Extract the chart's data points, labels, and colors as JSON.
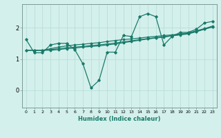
{
  "xlabel": "Humidex (Indice chaleur)",
  "bg_color": "#d4f0ec",
  "grid_color": "#b8ddd8",
  "line_color": "#1a7a6a",
  "spine_color": "#7a9a96",
  "xlim": [
    -0.5,
    23.5
  ],
  "ylim": [
    -0.55,
    2.75
  ],
  "yticks": [
    0,
    1,
    2
  ],
  "xticks": [
    0,
    1,
    2,
    3,
    4,
    5,
    6,
    7,
    8,
    9,
    10,
    11,
    12,
    13,
    14,
    15,
    16,
    17,
    18,
    19,
    20,
    21,
    22,
    23
  ],
  "line1_x": [
    0,
    1,
    2,
    3,
    4,
    5,
    6,
    7,
    8,
    9,
    10,
    11,
    12,
    13,
    14,
    15,
    16,
    17,
    18,
    19,
    20,
    21,
    22,
    23
  ],
  "line1_y": [
    1.62,
    1.2,
    1.2,
    1.45,
    1.5,
    1.5,
    1.3,
    0.85,
    0.08,
    0.32,
    1.22,
    1.22,
    1.75,
    1.72,
    2.35,
    2.45,
    2.35,
    1.45,
    1.72,
    1.85,
    1.85,
    1.95,
    2.15,
    2.2
  ],
  "line2_x": [
    0,
    1,
    2,
    3,
    4,
    5,
    6,
    7,
    8,
    9,
    10,
    11,
    12,
    13,
    14,
    15,
    16,
    17,
    18,
    19,
    20,
    21,
    22,
    23
  ],
  "line2_y": [
    1.28,
    1.28,
    1.28,
    1.33,
    1.38,
    1.42,
    1.45,
    1.47,
    1.5,
    1.52,
    1.56,
    1.59,
    1.62,
    1.64,
    1.67,
    1.7,
    1.72,
    1.75,
    1.77,
    1.8,
    1.83,
    1.9,
    1.97,
    2.05
  ],
  "line3_x": [
    0,
    1,
    2,
    3,
    4,
    5,
    6,
    7,
    8,
    9,
    10,
    11,
    12,
    13,
    14,
    15,
    16,
    17,
    18,
    19,
    20,
    21,
    22,
    23
  ],
  "line3_y": [
    1.28,
    1.28,
    1.28,
    1.3,
    1.33,
    1.36,
    1.38,
    1.4,
    1.43,
    1.45,
    1.48,
    1.51,
    1.55,
    1.58,
    1.62,
    1.65,
    1.68,
    1.71,
    1.75,
    1.78,
    1.82,
    1.88,
    1.96,
    2.03
  ],
  "line4_x": [
    0,
    1,
    2,
    3,
    4,
    5,
    6,
    7,
    8,
    9,
    10,
    11,
    12,
    13,
    14,
    15,
    16,
    17,
    18,
    19,
    20,
    21,
    22,
    23
  ],
  "line4_y": [
    1.28,
    1.28,
    1.28,
    1.28,
    1.3,
    1.33,
    1.35,
    1.38,
    1.4,
    1.42,
    1.45,
    1.48,
    1.52,
    1.56,
    1.6,
    1.64,
    1.67,
    1.7,
    1.74,
    1.77,
    1.8,
    1.87,
    1.95,
    2.02
  ]
}
